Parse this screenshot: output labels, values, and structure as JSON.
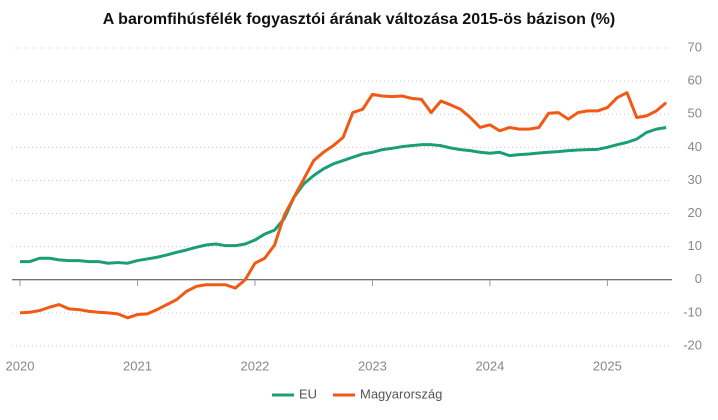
{
  "chart_data": {
    "type": "line",
    "title": "A baromfihúsfélék fogyasztói árának változása 2015-ös bázison (%)",
    "x": [
      2020,
      2020.083,
      2020.167,
      2020.25,
      2020.333,
      2020.417,
      2020.5,
      2020.583,
      2020.667,
      2020.75,
      2020.833,
      2020.917,
      2021,
      2021.083,
      2021.167,
      2021.25,
      2021.333,
      2021.417,
      2021.5,
      2021.583,
      2021.667,
      2021.75,
      2021.833,
      2021.917,
      2022,
      2022.083,
      2022.167,
      2022.25,
      2022.333,
      2022.417,
      2022.5,
      2022.583,
      2022.667,
      2022.75,
      2022.833,
      2022.917,
      2023,
      2023.083,
      2023.167,
      2023.25,
      2023.333,
      2023.417,
      2023.5,
      2023.583,
      2023.667,
      2023.75,
      2023.833,
      2023.917,
      2024,
      2024.083,
      2024.167,
      2024.25,
      2024.333,
      2024.417,
      2024.5,
      2024.583,
      2024.667,
      2024.75,
      2024.833,
      2024.917,
      2025,
      2025.083,
      2025.167,
      2025.25,
      2025.333,
      2025.417,
      2025.5
    ],
    "series": [
      {
        "name": "EU",
        "color": "#1b9e77",
        "values": [
          5.5,
          5.5,
          6.5,
          6.5,
          6,
          5.8,
          5.8,
          5.5,
          5.5,
          5,
          5.2,
          5,
          5.8,
          6.3,
          6.8,
          7.5,
          8.3,
          9,
          9.8,
          10.5,
          10.8,
          10.3,
          10.3,
          10.8,
          12,
          13.8,
          15,
          18.5,
          25,
          29,
          31.5,
          33.5,
          35,
          36,
          37,
          38,
          38.5,
          39.3,
          39.7,
          40.2,
          40.5,
          40.8,
          40.8,
          40.5,
          39.8,
          39.3,
          39,
          38.5,
          38.2,
          38.5,
          37.5,
          37.8,
          38,
          38.3,
          38.5,
          38.7,
          39,
          39.2,
          39.3,
          39.4,
          40,
          40.8,
          41.5,
          42.5,
          44.5,
          45.5,
          46
        ]
      },
      {
        "name": "Magyarország",
        "color": "#f05a14",
        "values": [
          -10,
          -9.8,
          -9.3,
          -8.3,
          -7.5,
          -8.8,
          -9,
          -9.5,
          -9.8,
          -10,
          -10.3,
          -11.5,
          -10.5,
          -10.3,
          -9,
          -7.5,
          -6,
          -3.5,
          -2,
          -1.5,
          -1.5,
          -1.5,
          -2.5,
          0,
          5,
          6.5,
          10.5,
          19.5,
          25,
          30.5,
          36,
          38.5,
          40.5,
          43,
          50.5,
          51.5,
          56,
          55.5,
          55.3,
          55.5,
          54.8,
          54.5,
          50.5,
          54,
          52.8,
          51.5,
          49,
          46,
          46.8,
          45,
          46,
          45.5,
          45.5,
          46,
          50.3,
          50.5,
          48.5,
          50.5,
          51,
          51,
          52,
          55,
          56.5,
          49,
          49.5,
          51,
          53.5
        ]
      }
    ],
    "xlim": [
      2020,
      2025.55
    ],
    "xticks": [
      2020,
      2021,
      2022,
      2023,
      2024,
      2025
    ],
    "ylim": [
      -20,
      70
    ],
    "yticks": [
      -20,
      -10,
      0,
      10,
      20,
      30,
      40,
      50,
      60,
      70
    ],
    "grid": true
  }
}
